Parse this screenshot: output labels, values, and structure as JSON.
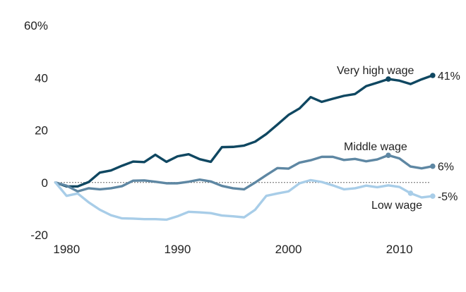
{
  "chart_data": {
    "type": "line",
    "title": "",
    "xlabel": "",
    "ylabel": "",
    "xlim": [
      1974,
      2016
    ],
    "ylim": [
      -20,
      60
    ],
    "xticks": [
      1980,
      1990,
      2000,
      2010
    ],
    "yticks": [
      -20,
      0,
      20,
      40,
      60
    ],
    "ytick_labels": [
      "-20",
      "0",
      "20",
      "40",
      "60%"
    ],
    "zero_line": true,
    "grid": false,
    "legend": "inline labels at line ends",
    "series": [
      {
        "name": "Very high wage",
        "color": "#0f4761",
        "end_label": "41%",
        "marker_years": [
          2009,
          2013
        ],
        "x": [
          1979,
          1980,
          1981,
          1982,
          1983,
          1984,
          1985,
          1986,
          1987,
          1988,
          1989,
          1990,
          1991,
          1992,
          1993,
          1994,
          1995,
          1996,
          1997,
          1998,
          1999,
          2000,
          2001,
          2002,
          2003,
          2004,
          2005,
          2006,
          2007,
          2008,
          2009,
          2010,
          2011,
          2012,
          2013
        ],
        "values": [
          0,
          -1.5,
          -1.5,
          0.2,
          3.8,
          4.6,
          6.4,
          8.0,
          7.8,
          10.6,
          7.9,
          10.0,
          10.8,
          8.9,
          7.9,
          13.5,
          13.6,
          14.1,
          15.6,
          18.5,
          22.1,
          25.8,
          28.3,
          32.6,
          30.8,
          32.0,
          33.1,
          33.8,
          36.8,
          38.1,
          39.5,
          38.9,
          37.6,
          39.4,
          40.9
        ]
      },
      {
        "name": "Middle wage",
        "color": "#5e87a3",
        "end_label": "6%",
        "marker_years": [
          2009,
          2013
        ],
        "x": [
          1979,
          1980,
          1981,
          1982,
          1983,
          1984,
          1985,
          1986,
          1987,
          1988,
          1989,
          1990,
          1991,
          1992,
          1993,
          1994,
          1995,
          1996,
          1997,
          1998,
          1999,
          2000,
          2001,
          2002,
          2003,
          2004,
          2005,
          2006,
          2007,
          2008,
          2009,
          2010,
          2011,
          2012,
          2013
        ],
        "values": [
          0,
          -1.2,
          -3.4,
          -2.2,
          -2.6,
          -2.2,
          -1.4,
          0.7,
          0.8,
          0.3,
          -0.3,
          -0.3,
          0.3,
          1.1,
          0.4,
          -1.3,
          -2.2,
          -2.6,
          0,
          2.8,
          5.5,
          5.3,
          7.6,
          8.5,
          9.8,
          9.8,
          8.6,
          9.0,
          8.1,
          8.8,
          10.4,
          9.2,
          6.1,
          5.4,
          6.2
        ]
      },
      {
        "name": "Low wage",
        "color": "#a8cde8",
        "end_label": "-5%",
        "marker_years": [
          2011,
          2013
        ],
        "x": [
          1979,
          1980,
          1981,
          1982,
          1983,
          1984,
          1985,
          1986,
          1987,
          1988,
          1989,
          1990,
          1991,
          1992,
          1993,
          1994,
          1995,
          1996,
          1997,
          1998,
          1999,
          2000,
          2001,
          2002,
          2003,
          2004,
          2005,
          2006,
          2007,
          2008,
          2009,
          2010,
          2011,
          2012,
          2013
        ],
        "values": [
          0,
          -5.1,
          -4.2,
          -7.6,
          -10.4,
          -12.5,
          -13.7,
          -13.8,
          -14.0,
          -14.0,
          -14.2,
          -12.9,
          -11.2,
          -11.4,
          -11.7,
          -12.6,
          -12.9,
          -13.3,
          -10.4,
          -5.1,
          -4.2,
          -3.4,
          -0.3,
          0.9,
          0.2,
          -1.1,
          -2.6,
          -2.2,
          -1.2,
          -1.8,
          -1.1,
          -1.7,
          -4.1,
          -5.7,
          -5.2
        ]
      }
    ]
  }
}
